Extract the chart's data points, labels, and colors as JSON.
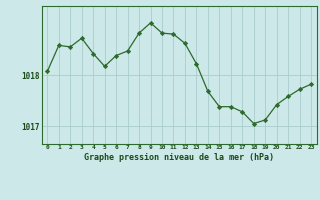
{
  "x": [
    0,
    1,
    2,
    3,
    4,
    5,
    6,
    7,
    8,
    9,
    10,
    11,
    12,
    13,
    14,
    15,
    16,
    17,
    18,
    19,
    20,
    21,
    22,
    23
  ],
  "y": [
    1018.07,
    1018.58,
    1018.55,
    1018.72,
    1018.42,
    1018.17,
    1018.38,
    1018.47,
    1018.82,
    1019.02,
    1018.82,
    1018.8,
    1018.62,
    1018.22,
    1017.68,
    1017.38,
    1017.38,
    1017.28,
    1017.05,
    1017.12,
    1017.42,
    1017.58,
    1017.72,
    1017.82
  ],
  "line_color": "#2d6a2d",
  "marker_color": "#2d6a2d",
  "bg_color": "#cce8e8",
  "grid_color": "#aacccc",
  "xlabel": "Graphe pression niveau de la mer (hPa)",
  "xlabel_color": "#1a4a1a",
  "tick_label_color": "#1a4a1a",
  "ytick_labels": [
    "1017",
    "1018"
  ],
  "ytick_values": [
    1017.0,
    1018.0
  ],
  "ylim": [
    1016.65,
    1019.35
  ],
  "xlim": [
    -0.5,
    23.5
  ],
  "xtick_values": [
    0,
    1,
    2,
    3,
    4,
    5,
    6,
    7,
    8,
    9,
    10,
    11,
    12,
    13,
    14,
    15,
    16,
    17,
    18,
    19,
    20,
    21,
    22,
    23
  ],
  "border_color": "#2d6a2d"
}
